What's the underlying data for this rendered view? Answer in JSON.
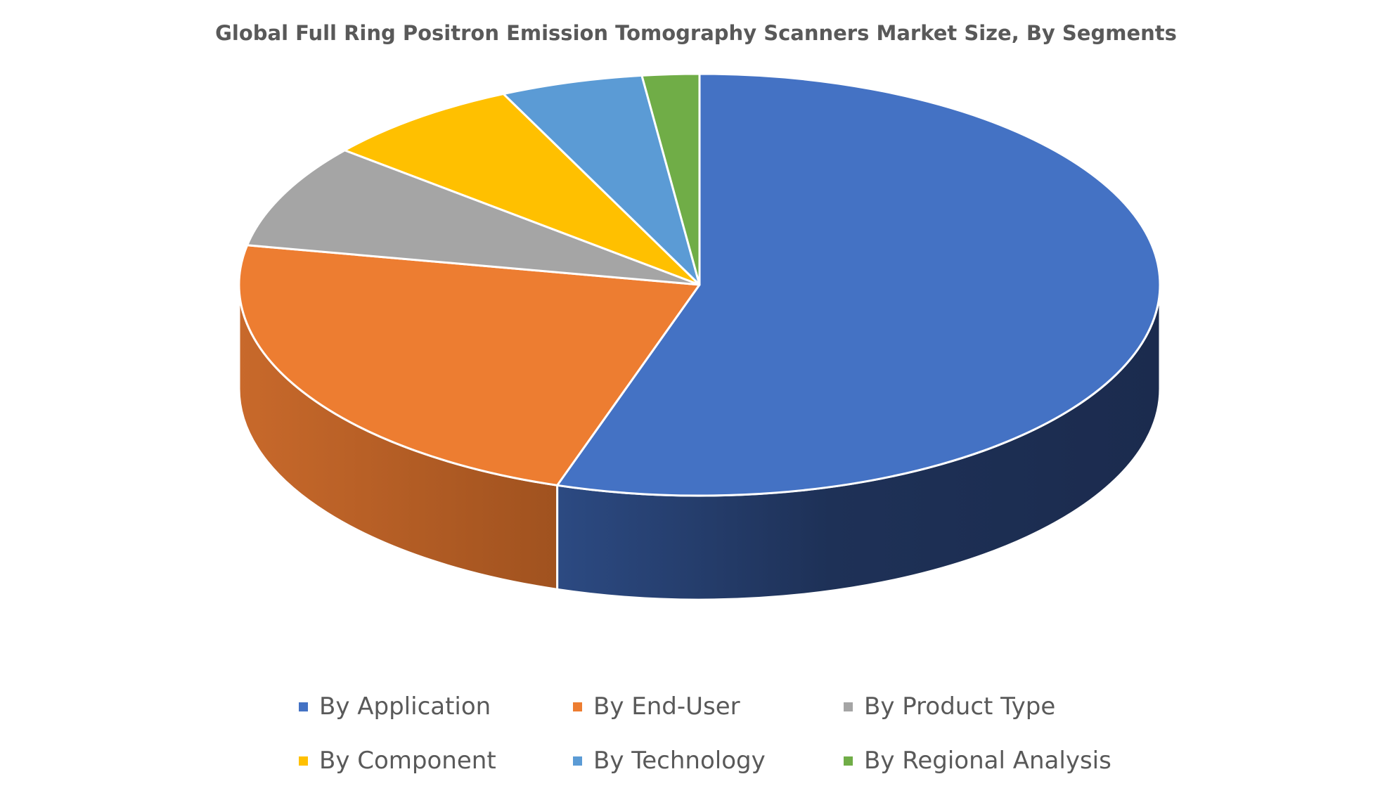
{
  "chart_data": {
    "type": "pie",
    "title": "Global Full Ring Positron Emission Tomography Scanners Market Size, By Segments",
    "style": "3d",
    "legend_position": "bottom",
    "series": [
      {
        "name": "By Application",
        "value": 55,
        "color": "#4472C4",
        "side_color": "#1F3864"
      },
      {
        "name": "By End-User",
        "value": 23,
        "color": "#ED7D31",
        "side_color": "#B85D22"
      },
      {
        "name": "By Product Type",
        "value": 8,
        "color": "#A5A5A5",
        "side_color": "#7B7B7B"
      },
      {
        "name": "By Component",
        "value": 7,
        "color": "#FFC000",
        "side_color": "#BF9000"
      },
      {
        "name": "By Technology",
        "value": 5,
        "color": "#5B9BD5",
        "side_color": "#2E75B6"
      },
      {
        "name": "By Regional Analysis",
        "value": 2,
        "color": "#70AD47",
        "side_color": "#507E32"
      }
    ]
  }
}
